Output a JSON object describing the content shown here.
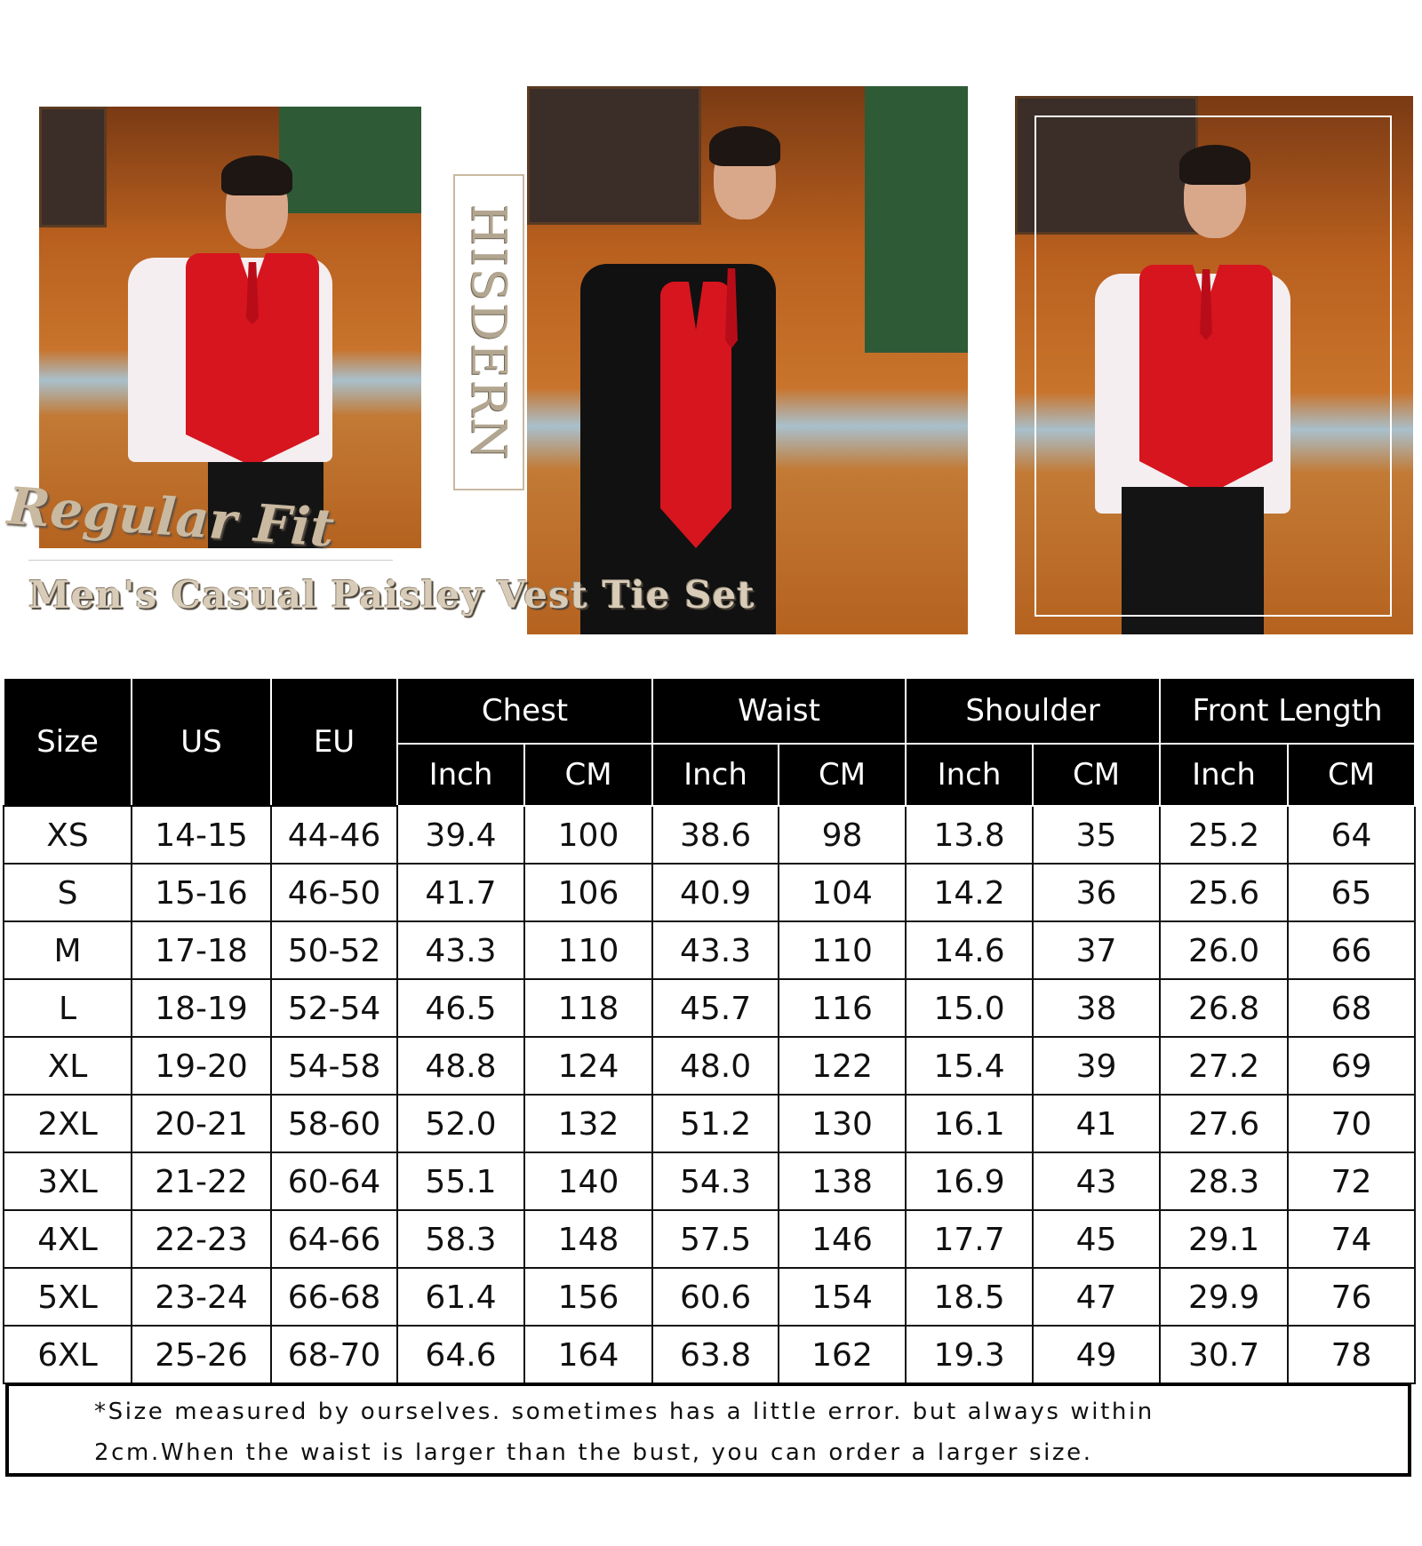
{
  "brand": "HISDERN",
  "fit_label": "Regular Fit",
  "product_title": "Men's Casual Paisley Vest Tie Set",
  "colors": {
    "vest": "#d6151f",
    "header_bg": "#000000",
    "title_gold": "#c9b9a0"
  },
  "table": {
    "header_groups": [
      "Size",
      "US",
      "EU",
      "Chest",
      "Waist",
      "Shoulder",
      "Front Length"
    ],
    "units": [
      "Inch",
      "CM",
      "Inch",
      "CM",
      "Inch",
      "CM",
      "Inch",
      "CM"
    ],
    "rows": [
      [
        "XS",
        "14-15",
        "44-46",
        "39.4",
        "100",
        "38.6",
        "98",
        "13.8",
        "35",
        "25.2",
        "64"
      ],
      [
        "S",
        "15-16",
        "46-50",
        "41.7",
        "106",
        "40.9",
        "104",
        "14.2",
        "36",
        "25.6",
        "65"
      ],
      [
        "M",
        "17-18",
        "50-52",
        "43.3",
        "110",
        "43.3",
        "110",
        "14.6",
        "37",
        "26.0",
        "66"
      ],
      [
        "L",
        "18-19",
        "52-54",
        "46.5",
        "118",
        "45.7",
        "116",
        "15.0",
        "38",
        "26.8",
        "68"
      ],
      [
        "XL",
        "19-20",
        "54-58",
        "48.8",
        "124",
        "48.0",
        "122",
        "15.4",
        "39",
        "27.2",
        "69"
      ],
      [
        "2XL",
        "20-21",
        "58-60",
        "52.0",
        "132",
        "51.2",
        "130",
        "16.1",
        "41",
        "27.6",
        "70"
      ],
      [
        "3XL",
        "21-22",
        "60-64",
        "55.1",
        "140",
        "54.3",
        "138",
        "16.9",
        "43",
        "28.3",
        "72"
      ],
      [
        "4XL",
        "22-23",
        "64-66",
        "58.3",
        "148",
        "57.5",
        "146",
        "17.7",
        "45",
        "29.1",
        "74"
      ],
      [
        "5XL",
        "23-24",
        "66-68",
        "61.4",
        "156",
        "60.6",
        "154",
        "18.5",
        "47",
        "29.9",
        "76"
      ],
      [
        "6XL",
        "25-26",
        "68-70",
        "64.6",
        "164",
        "63.8",
        "162",
        "19.3",
        "49",
        "30.7",
        "78"
      ]
    ]
  },
  "note": {
    "line1": "*Size measured by ourselves. sometimes has a little error. but always within",
    "line2": "2cm.When the waist is larger than the bust, you can order a larger size."
  }
}
